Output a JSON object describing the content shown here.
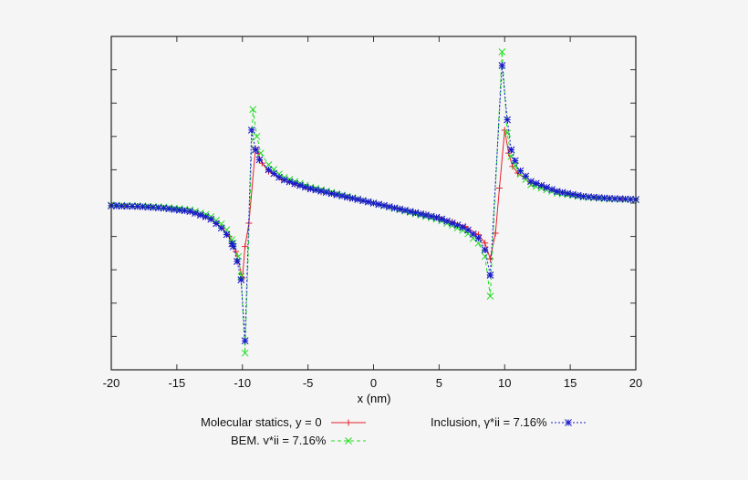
{
  "chart_data": {
    "type": "line",
    "title": "",
    "xlabel": "x (nm)",
    "ylabel": "",
    "xlim": [
      -20,
      20
    ],
    "ylim": [
      -5,
      5
    ],
    "xticks": [
      -20,
      -15,
      -10,
      -5,
      0,
      5,
      10,
      15,
      20
    ],
    "xtick_labels": [
      "-20",
      "-15",
      "-10",
      "-5",
      "0",
      "5",
      "10",
      "15",
      "20"
    ],
    "yticks_count": 11,
    "ytick_labels_visible": false,
    "grid": false,
    "legend_position": "below",
    "series": [
      {
        "name": "Molecular statics, y = 0",
        "color": "#e8202a",
        "style": "solid",
        "marker": "+",
        "points": [
          [
            -20,
            -0.08
          ],
          [
            -18,
            -0.1
          ],
          [
            -16,
            -0.15
          ],
          [
            -14,
            -0.25
          ],
          [
            -12.5,
            -0.45
          ],
          [
            -11.5,
            -0.75
          ],
          [
            -11,
            -1.0
          ],
          [
            -10.5,
            -1.45
          ],
          [
            -10,
            -2.24
          ],
          [
            -9.8,
            -1.3
          ],
          [
            -9.5,
            -0.6
          ],
          [
            -9,
            1.64
          ],
          [
            -8.8,
            1.5
          ],
          [
            -8.5,
            1.2
          ],
          [
            -8,
            0.95
          ],
          [
            -7,
            0.7
          ],
          [
            -5,
            0.42
          ],
          [
            -3,
            0.25
          ],
          [
            0,
            0.0
          ],
          [
            3,
            -0.25
          ],
          [
            5,
            -0.42
          ],
          [
            7,
            -0.7
          ],
          [
            8,
            -0.95
          ],
          [
            8.5,
            -1.2
          ],
          [
            8.9,
            -1.67
          ],
          [
            9.3,
            -0.9
          ],
          [
            9.6,
            0.45
          ],
          [
            10,
            2.19
          ],
          [
            10.3,
            1.5
          ],
          [
            10.6,
            1.1
          ],
          [
            11,
            0.9
          ],
          [
            12,
            0.6
          ],
          [
            14,
            0.35
          ],
          [
            16,
            0.2
          ],
          [
            18,
            0.14
          ],
          [
            20,
            0.11
          ]
        ]
      },
      {
        "name": "BEM, γ*ii = 7.16%",
        "color": "#22dd22",
        "style": "dashed",
        "marker": "x",
        "points": [
          [
            -20,
            -0.06
          ],
          [
            -18,
            -0.08
          ],
          [
            -16,
            -0.12
          ],
          [
            -14,
            -0.2
          ],
          [
            -12.5,
            -0.38
          ],
          [
            -11.5,
            -0.65
          ],
          [
            -11,
            -0.9
          ],
          [
            -10.7,
            -1.2
          ],
          [
            -10.3,
            -1.6
          ],
          [
            -10.1,
            -2.2
          ],
          [
            -9.8,
            -4.5
          ],
          [
            -9.2,
            2.81
          ],
          [
            -8.9,
            2.0
          ],
          [
            -8.6,
            1.5
          ],
          [
            -8,
            1.15
          ],
          [
            -7,
            0.8
          ],
          [
            -5,
            0.5
          ],
          [
            -3,
            0.3
          ],
          [
            0,
            0.0
          ],
          [
            3,
            -0.3
          ],
          [
            5,
            -0.5
          ],
          [
            7,
            -0.85
          ],
          [
            8,
            -1.2
          ],
          [
            8.5,
            -1.6
          ],
          [
            8.9,
            -2.79
          ],
          [
            9.8,
            4.54
          ],
          [
            10.2,
            2.1
          ],
          [
            10.5,
            1.4
          ],
          [
            11,
            0.95
          ],
          [
            12,
            0.55
          ],
          [
            14,
            0.3
          ],
          [
            16,
            0.18
          ],
          [
            18,
            0.12
          ],
          [
            20,
            0.1
          ]
        ]
      },
      {
        "name": "Inclusion, γ*ii = 7.16%",
        "color": "#1a1acc",
        "style": "dotted",
        "marker": "*",
        "points": [
          [
            -20,
            -0.08
          ],
          [
            -18,
            -0.1
          ],
          [
            -16,
            -0.15
          ],
          [
            -14,
            -0.25
          ],
          [
            -12.5,
            -0.45
          ],
          [
            -11.5,
            -0.78
          ],
          [
            -11,
            -1.05
          ],
          [
            -10.7,
            -1.3
          ],
          [
            -10.4,
            -1.75
          ],
          [
            -10.1,
            -2.3
          ],
          [
            -9.8,
            -4.13
          ],
          [
            -9.3,
            2.19
          ],
          [
            -9,
            1.6
          ],
          [
            -8.7,
            1.3
          ],
          [
            -8,
            1.0
          ],
          [
            -7,
            0.72
          ],
          [
            -5,
            0.45
          ],
          [
            -3,
            0.27
          ],
          [
            0,
            0.0
          ],
          [
            3,
            -0.27
          ],
          [
            5,
            -0.45
          ],
          [
            7,
            -0.75
          ],
          [
            8,
            -1.05
          ],
          [
            8.5,
            -1.4
          ],
          [
            8.9,
            -2.16
          ],
          [
            9.8,
            4.13
          ],
          [
            10.2,
            2.5
          ],
          [
            10.5,
            1.6
          ],
          [
            11,
            1.05
          ],
          [
            12,
            0.65
          ],
          [
            14,
            0.35
          ],
          [
            16,
            0.2
          ],
          [
            18,
            0.14
          ],
          [
            20,
            0.11
          ]
        ]
      }
    ]
  },
  "legend": {
    "items": [
      {
        "text": "Molecular statics, y = 0",
        "color": "#e8202a"
      },
      {
        "text": "Inclusion, γ*ii = 7.16%",
        "color": "#1a1acc"
      },
      {
        "text": "BEM, γ*ii = 7.16%",
        "color": "#22dd22"
      }
    ]
  }
}
